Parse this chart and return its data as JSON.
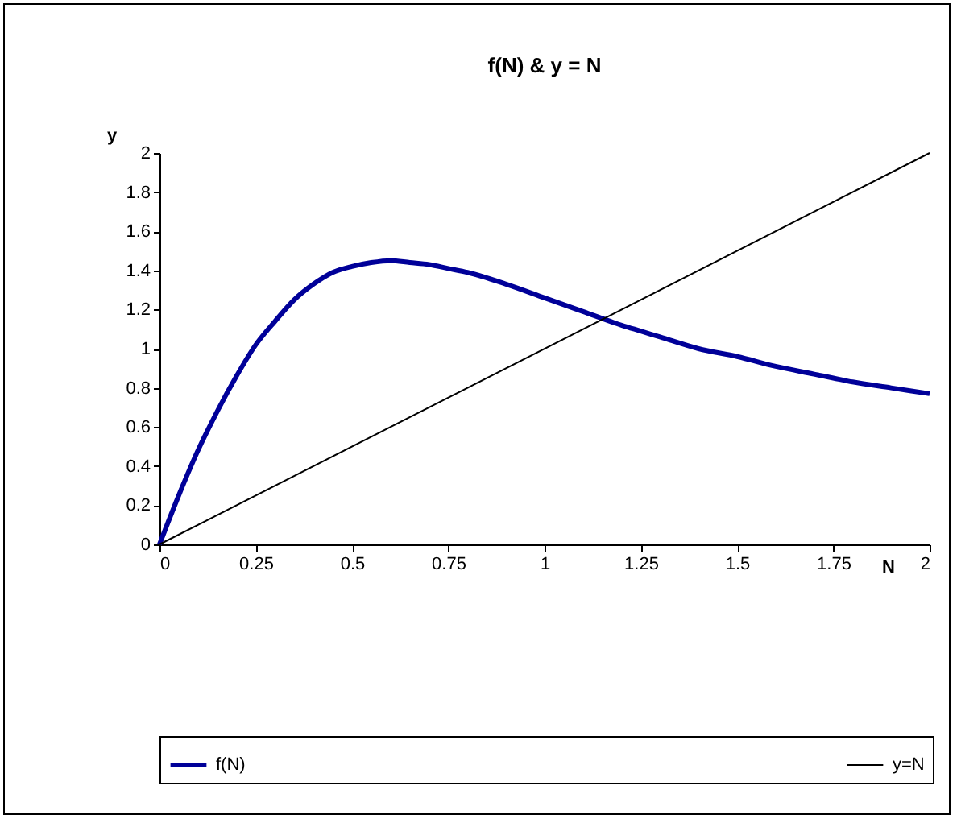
{
  "chart_data": {
    "type": "line",
    "title": "f(N) & y = N",
    "xlabel": "N",
    "ylabel": "y",
    "xlim": [
      0,
      2
    ],
    "xticks": [
      0,
      0.25,
      0.5,
      0.75,
      1,
      1.25,
      1.5,
      1.75,
      2
    ],
    "ylim": [
      0,
      2
    ],
    "yticks": [
      0,
      0.2,
      0.4,
      0.6,
      0.8,
      1,
      1.2,
      1.4,
      1.6,
      1.8,
      2
    ],
    "grid": false,
    "legend": "bottom",
    "marker": "none",
    "line_style": "solid",
    "series": [
      {
        "name": "f(N)",
        "color": "#000099",
        "x": [
          0,
          0.05,
          0.1,
          0.15,
          0.2,
          0.25,
          0.3,
          0.35,
          0.4,
          0.45,
          0.5,
          0.55,
          0.6,
          0.65,
          0.7,
          0.75,
          0.8,
          0.9,
          1,
          1.1,
          1.2,
          1.25,
          1.3,
          1.4,
          1.5,
          1.6,
          1.7,
          1.75,
          1.8,
          1.9,
          2
        ],
        "values": [
          0,
          0.25,
          0.48,
          0.68,
          0.86,
          1.02,
          1.14,
          1.25,
          1.33,
          1.39,
          1.42,
          1.44,
          1.45,
          1.44,
          1.43,
          1.41,
          1.39,
          1.33,
          1.26,
          1.19,
          1.12,
          1.09,
          1.06,
          1.0,
          0.96,
          0.91,
          0.87,
          0.85,
          0.83,
          0.8,
          0.77
        ]
      },
      {
        "name": "y=N",
        "color": "#000000",
        "x": [
          0,
          2
        ],
        "values": [
          0,
          2
        ]
      }
    ]
  }
}
